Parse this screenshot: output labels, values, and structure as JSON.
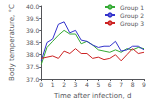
{
  "chart_data": {
    "type": "line",
    "xlabel": "Time after infection, d",
    "ylabel": "Body temperature, °C",
    "x": [
      0,
      0.5,
      1.0,
      1.5,
      2.0,
      2.5,
      3.0,
      3.5,
      4.0,
      4.5,
      5.0,
      5.5,
      6.0,
      6.5,
      7.0,
      7.5,
      8.0,
      8.5,
      9.0
    ],
    "series": [
      {
        "name": "Group 1",
        "color": "#33aa33",
        "values": [
          37.6,
          38.3,
          38.55,
          38.8,
          39.0,
          38.85,
          38.85,
          38.45,
          38.55,
          38.4,
          38.2,
          38.15,
          38.1,
          38.2,
          38.1,
          38.25,
          38.2,
          38.3,
          38.25
        ]
      },
      {
        "name": "Group 2",
        "color": "#3333cc",
        "values": [
          37.75,
          38.5,
          38.65,
          39.25,
          39.35,
          38.9,
          39.0,
          38.6,
          38.55,
          38.4,
          38.3,
          38.35,
          38.35,
          38.55,
          38.15,
          38.2,
          38.35,
          38.35,
          38.2
        ]
      },
      {
        "name": "Group 3",
        "color": "#cc2222",
        "values": [
          37.85,
          37.9,
          37.95,
          37.85,
          38.15,
          38.05,
          38.25,
          38.05,
          38.05,
          37.85,
          37.9,
          37.8,
          37.85,
          38.0,
          37.75,
          38.0,
          38.25,
          38.05,
          38.1
        ]
      }
    ],
    "xlim": [
      0,
      9
    ],
    "xticks": [
      0,
      1,
      2,
      3,
      4,
      5,
      6,
      7,
      8,
      9
    ],
    "ylim": [
      37.0,
      40.0
    ],
    "yticks": [
      {
        "value": 37.0,
        "label": "37.0"
      },
      {
        "value": 37.5,
        "label": "37.5"
      },
      {
        "value": 38.0,
        "label": "38.0"
      },
      {
        "value": 38.5,
        "label": "38.5"
      },
      {
        "value": 39.0,
        "label": "39.0"
      },
      {
        "value": 39.5,
        "label": "39.5"
      },
      {
        "value": 40.0,
        "label": "40.0"
      }
    ],
    "legend": "upper right",
    "grid": false
  }
}
